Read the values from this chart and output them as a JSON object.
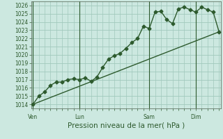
{
  "title": "",
  "xlabel": "Pression niveau de la mer( hPa )",
  "ylabel": "",
  "background_color": "#cce8e0",
  "grid_color_major": "#a0c8bc",
  "grid_color_minor": "#b8d8d0",
  "line_color": "#2d5a2d",
  "ylim": [
    1013.5,
    1026.5
  ],
  "yticks": [
    1014,
    1015,
    1016,
    1017,
    1018,
    1019,
    1020,
    1021,
    1022,
    1023,
    1024,
    1025,
    1026
  ],
  "xtick_labels": [
    "Ven",
    "Lun",
    "Sam",
    "Dim"
  ],
  "xtick_positions": [
    0,
    8,
    20,
    28
  ],
  "xlim": [
    -0.3,
    32.3
  ],
  "line1_x": [
    0,
    1,
    2,
    3,
    4,
    5,
    6,
    7,
    8,
    9,
    10,
    11,
    12,
    13,
    14,
    15,
    16,
    17,
    18,
    19,
    20,
    21,
    22,
    23,
    24,
    25,
    26,
    27,
    28,
    29,
    30,
    31,
    32
  ],
  "line1_y": [
    1014.0,
    1015.0,
    1015.5,
    1016.3,
    1016.7,
    1016.7,
    1017.0,
    1017.1,
    1017.0,
    1017.2,
    1016.8,
    1017.3,
    1018.5,
    1019.5,
    1019.9,
    1020.2,
    1020.8,
    1021.5,
    1022.0,
    1023.5,
    1023.2,
    1025.2,
    1025.3,
    1024.3,
    1023.8,
    1025.6,
    1025.8,
    1025.5,
    1025.2,
    1025.8,
    1025.5,
    1025.2,
    1022.8
  ],
  "line2_x": [
    0,
    32
  ],
  "line2_y": [
    1014.0,
    1022.8
  ],
  "vline_positions": [
    0,
    8,
    20,
    28
  ],
  "marker": "D",
  "marker_size": 2.5,
  "line_width": 1.0,
  "tick_fontsize": 5.5,
  "xlabel_fontsize": 7.5
}
